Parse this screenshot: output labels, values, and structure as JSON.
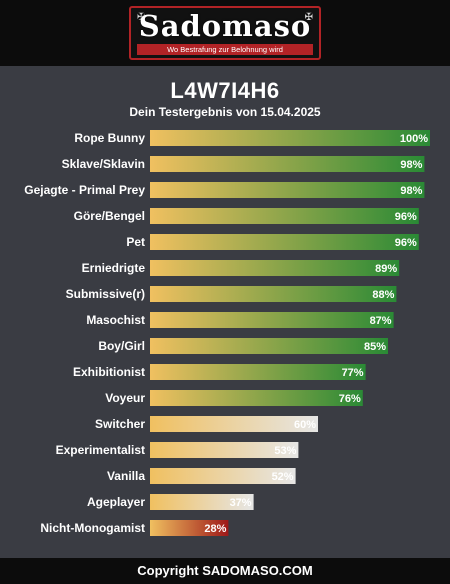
{
  "header": {
    "logo_text": "Sadomaso",
    "logo_tagline": "Wo Bestrafung zur Belohnung wird"
  },
  "chart_data": {
    "type": "bar",
    "orientation": "horizontal",
    "title": "L4W7I4H6",
    "subtitle": "Dein Testergebnis von 15.04.2025",
    "categories": [
      "Rope Bunny",
      "Sklave/Sklavin",
      "Gejagte - Primal Prey",
      "Göre/Bengel",
      "Pet",
      "Erniedrigte",
      "Submissive(r)",
      "Masochist",
      "Boy/Girl",
      "Exhibitionist",
      "Voyeur",
      "Switcher",
      "Experimentalist",
      "Vanilla",
      "Ageplayer",
      "Nicht-Monogamist"
    ],
    "values": [
      100,
      98,
      98,
      96,
      96,
      89,
      88,
      87,
      85,
      77,
      76,
      60,
      53,
      52,
      37,
      28
    ],
    "value_labels": [
      "100%",
      "98%",
      "98%",
      "96%",
      "96%",
      "89%",
      "88%",
      "87%",
      "85%",
      "77%",
      "76%",
      "60%",
      "53%",
      "52%",
      "37%",
      "28%"
    ],
    "xlim": [
      0,
      100
    ],
    "grid": false,
    "colors": {
      "gradient_start": "#f0c060",
      "high_end": "#2a8a35",
      "mid_end": "#e6e6e6",
      "low_end": "#9e1818"
    }
  },
  "footer": {
    "text": "Copyright SADOMASO.COM"
  }
}
